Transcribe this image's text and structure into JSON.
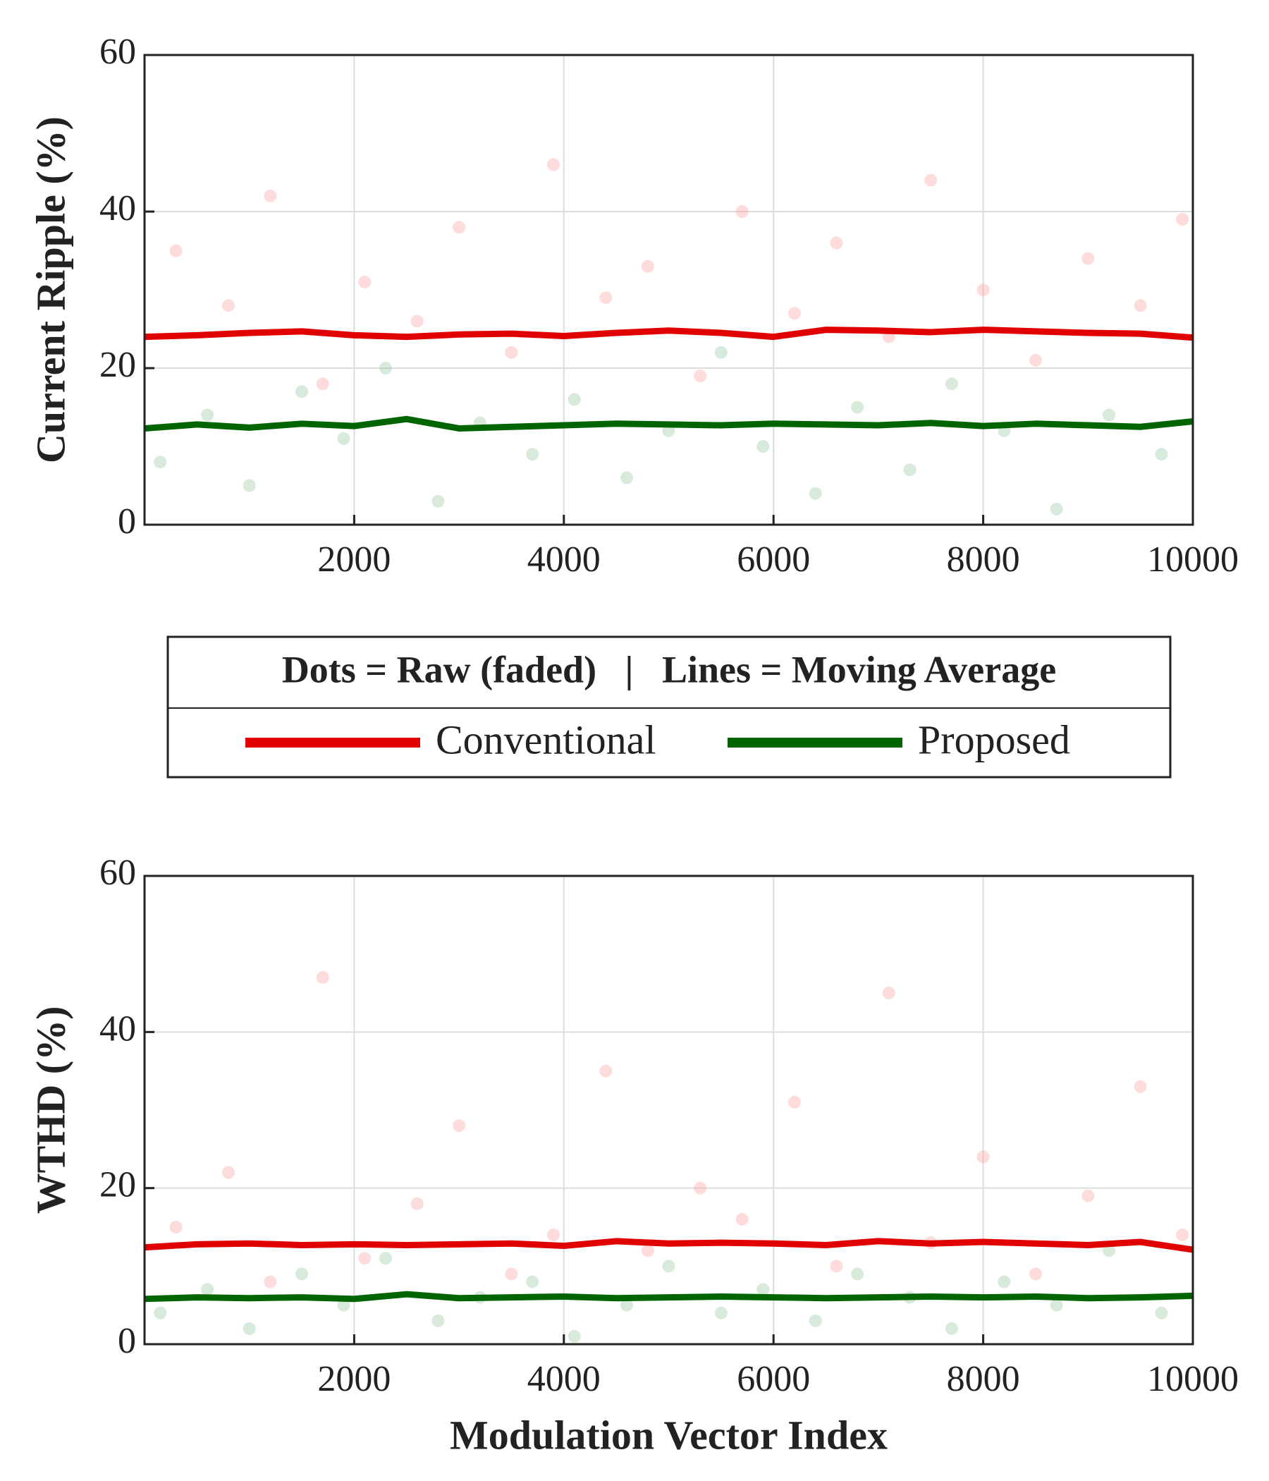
{
  "chart_data": [
    {
      "type": "scatter",
      "ylabel": "Current Ripple (%)",
      "xlim": [
        0,
        10000
      ],
      "xticks": [
        2000,
        4000,
        6000,
        8000,
        10000
      ],
      "ylim": [
        0,
        60
      ],
      "yticks": [
        0,
        20,
        40,
        60
      ],
      "grid": true,
      "series": [
        {
          "name": "Conventional",
          "color": "#e00000",
          "x": [
            0,
            500,
            1000,
            1500,
            2000,
            2500,
            3000,
            3500,
            4000,
            4500,
            5000,
            5500,
            6000,
            6500,
            7000,
            7500,
            8000,
            8500,
            9000,
            9500,
            10000
          ],
          "values": [
            24,
            24.2,
            24.5,
            24.7,
            24.2,
            24,
            24.3,
            24.4,
            24.1,
            24.5,
            24.8,
            24.5,
            24,
            24.9,
            24.8,
            24.6,
            24.9,
            24.7,
            24.5,
            24.4,
            23.9
          ],
          "raw": {
            "color": "#ff9a9a",
            "x": [
              300,
              800,
              1200,
              1700,
              2100,
              2600,
              3000,
              3500,
              3900,
              4400,
              4800,
              5300,
              5700,
              6200,
              6600,
              7100,
              7500,
              8000,
              8500,
              9000,
              9500,
              9900
            ],
            "values": [
              35,
              28,
              42,
              18,
              31,
              26,
              38,
              22,
              46,
              29,
              33,
              19,
              40,
              27,
              36,
              24,
              44,
              30,
              21,
              34,
              28,
              39
            ]
          }
        },
        {
          "name": "Proposed",
          "color": "#006400",
          "x": [
            0,
            500,
            1000,
            1500,
            2000,
            2500,
            3000,
            3500,
            4000,
            4500,
            5000,
            5500,
            6000,
            6500,
            7000,
            7500,
            8000,
            8500,
            9000,
            9500,
            10000
          ],
          "values": [
            12.3,
            12.8,
            12.4,
            12.9,
            12.6,
            13.5,
            12.3,
            12.5,
            12.7,
            12.9,
            12.8,
            12.7,
            12.9,
            12.8,
            12.7,
            13,
            12.6,
            12.9,
            12.7,
            12.5,
            13.2
          ],
          "raw": {
            "color": "#8fc49a",
            "x": [
              150,
              600,
              1000,
              1500,
              1900,
              2300,
              2800,
              3200,
              3700,
              4100,
              4600,
              5000,
              5500,
              5900,
              6400,
              6800,
              7300,
              7700,
              8200,
              8700,
              9200,
              9700
            ],
            "values": [
              8,
              14,
              5,
              17,
              11,
              20,
              3,
              13,
              9,
              16,
              6,
              12,
              22,
              10,
              4,
              15,
              7,
              18,
              12,
              2,
              14,
              9
            ]
          }
        }
      ]
    },
    {
      "type": "scatter",
      "ylabel": "WTHD (%)",
      "xlabel": "Modulation Vector Index",
      "xlim": [
        0,
        10000
      ],
      "xticks": [
        2000,
        4000,
        6000,
        8000,
        10000
      ],
      "ylim": [
        0,
        60
      ],
      "yticks": [
        0,
        20,
        40,
        60
      ],
      "grid": true,
      "series": [
        {
          "name": "Conventional",
          "color": "#e00000",
          "x": [
            0,
            500,
            1000,
            1500,
            2000,
            2500,
            3000,
            3500,
            4000,
            4500,
            5000,
            5500,
            6000,
            6500,
            7000,
            7500,
            8000,
            8500,
            9000,
            9500,
            10000
          ],
          "values": [
            12.4,
            12.8,
            12.9,
            12.7,
            12.8,
            12.7,
            12.8,
            12.9,
            12.6,
            13.2,
            12.9,
            13,
            12.9,
            12.7,
            13.2,
            12.9,
            13.1,
            12.9,
            12.7,
            13.1,
            12.1
          ],
          "raw": {
            "color": "#ff9a9a",
            "x": [
              300,
              800,
              1200,
              1700,
              2100,
              2600,
              3000,
              3500,
              3900,
              4400,
              4800,
              5300,
              5700,
              6200,
              6600,
              7100,
              7500,
              8000,
              8500,
              9000,
              9500,
              9900
            ],
            "values": [
              15,
              22,
              8,
              47,
              11,
              18,
              28,
              9,
              14,
              35,
              12,
              20,
              16,
              31,
              10,
              45,
              13,
              24,
              9,
              19,
              33,
              14
            ]
          }
        },
        {
          "name": "Proposed",
          "color": "#006400",
          "x": [
            0,
            500,
            1000,
            1500,
            2000,
            2500,
            3000,
            3500,
            4000,
            4500,
            5000,
            5500,
            6000,
            6500,
            7000,
            7500,
            8000,
            8500,
            9000,
            9500,
            10000
          ],
          "values": [
            5.8,
            6,
            5.9,
            6,
            5.8,
            6.4,
            5.9,
            6,
            6.1,
            5.9,
            6,
            6.1,
            6,
            5.9,
            6,
            6.1,
            6,
            6.1,
            5.9,
            6,
            6.2
          ],
          "raw": {
            "color": "#8fc49a",
            "x": [
              150,
              600,
              1000,
              1500,
              1900,
              2300,
              2800,
              3200,
              3700,
              4100,
              4600,
              5000,
              5500,
              5900,
              6400,
              6800,
              7300,
              7700,
              8200,
              8700,
              9200,
              9700
            ],
            "values": [
              4,
              7,
              2,
              9,
              5,
              11,
              3,
              6,
              8,
              1,
              5,
              10,
              4,
              7,
              3,
              9,
              6,
              2,
              8,
              5,
              12,
              4
            ]
          }
        }
      ]
    }
  ],
  "legend": {
    "title": "Dots = Raw (faded)   |   Lines = Moving Average"
  }
}
